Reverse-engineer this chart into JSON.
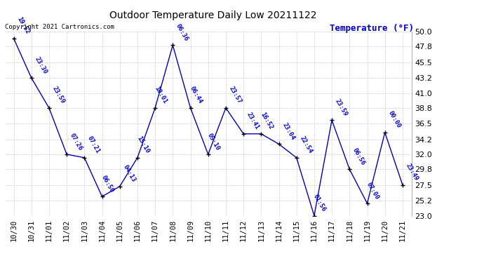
{
  "title": "Outdoor Temperature Daily Low 20211122",
  "ylabel": "Temperature (°F)",
  "copyright": "Copyright 2021 Cartronics.com",
  "background_color": "#ffffff",
  "plot_bg_color": "#ffffff",
  "line_color": "#0000bb",
  "marker_color": "#000000",
  "label_color": "#0000cc",
  "grid_color": "#cccccc",
  "ylim": [
    23.0,
    50.0
  ],
  "yticks": [
    23.0,
    25.2,
    27.5,
    29.8,
    32.0,
    34.2,
    36.5,
    38.8,
    41.0,
    43.2,
    45.5,
    47.8,
    50.0
  ],
  "dates": [
    "10/30",
    "10/31",
    "11/01",
    "11/02",
    "11/03",
    "11/04",
    "11/05",
    "11/06",
    "11/07",
    "11/08",
    "11/09",
    "11/10",
    "11/11",
    "11/12",
    "11/13",
    "11/14",
    "11/15",
    "11/16",
    "11/17",
    "11/18",
    "11/19",
    "11/20",
    "11/21"
  ],
  "values": [
    49.0,
    43.2,
    38.8,
    32.0,
    31.5,
    25.8,
    27.3,
    31.5,
    38.8,
    48.0,
    38.8,
    32.0,
    38.8,
    35.0,
    35.0,
    33.5,
    31.5,
    23.0,
    37.0,
    29.8,
    24.8,
    35.2,
    27.5
  ],
  "times": [
    "19:52",
    "23:30",
    "23:59",
    "07:26",
    "07:21",
    "06:50",
    "04:13",
    "15:10",
    "10:01",
    "06:36",
    "06:44",
    "05:10",
    "23:57",
    "23:41",
    "16:52",
    "23:04",
    "22:54",
    "01:56",
    "23:59",
    "06:56",
    "07:00",
    "00:00",
    "23:49"
  ],
  "label_offsets_x": [
    2,
    2,
    2,
    2,
    2,
    -2,
    2,
    -2,
    -2,
    2,
    -2,
    -2,
    2,
    2,
    -2,
    2,
    2,
    -2,
    2,
    2,
    -2,
    2,
    2
  ],
  "label_offsets_y": [
    3,
    3,
    3,
    3,
    3,
    3,
    3,
    3,
    3,
    3,
    3,
    3,
    3,
    3,
    3,
    3,
    3,
    3,
    3,
    3,
    3,
    3,
    3
  ]
}
